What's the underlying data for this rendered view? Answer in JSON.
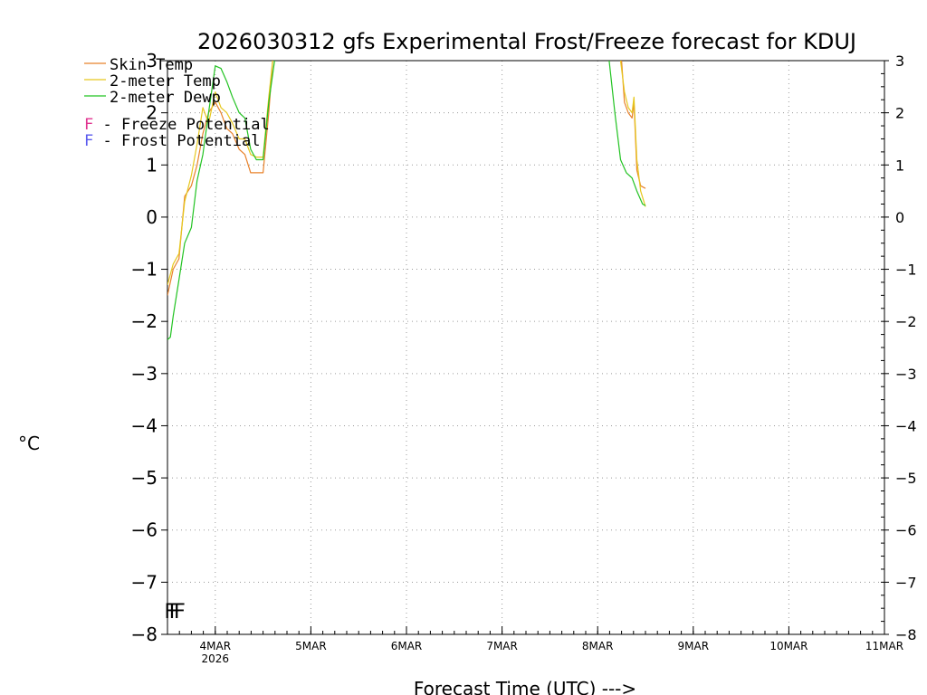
{
  "chart_data": {
    "type": "line",
    "title": "2026030312 gfs Experimental Frost/Freeze forecast for KDUJ",
    "xlabel": "Forecast Time (UTC) --->",
    "ylabel": "°C",
    "ylim": [
      -8,
      3
    ],
    "xlim": [
      3.5,
      11.0
    ],
    "yticks": [
      "-8",
      "-7",
      "-6",
      "-5",
      "-4",
      "-3",
      "-2",
      "-1",
      "0",
      "1",
      "2",
      "3"
    ],
    "xticks": [
      {
        "x": 4,
        "label": "4MAR",
        "sublabel": "2026"
      },
      {
        "x": 5,
        "label": "5MAR",
        "sublabel": ""
      },
      {
        "x": 6,
        "label": "6MAR",
        "sublabel": ""
      },
      {
        "x": 7,
        "label": "7MAR",
        "sublabel": ""
      },
      {
        "x": 8,
        "label": "8MAR",
        "sublabel": ""
      },
      {
        "x": 9,
        "label": "9MAR",
        "sublabel": ""
      },
      {
        "x": 10,
        "label": "10MAR",
        "sublabel": ""
      },
      {
        "x": 11,
        "label": "11MAR",
        "sublabel": ""
      }
    ],
    "grid": true,
    "legend": [
      {
        "name": "Skin Temp",
        "color": "#e8822a"
      },
      {
        "name": "2-meter Temp",
        "color": "#e6c81e"
      },
      {
        "name": "2-meter Dewp",
        "color": "#22c322"
      }
    ],
    "potential_legend": [
      {
        "letter": "F",
        "text": " - Freeze Potential",
        "color": "#e0338f"
      },
      {
        "letter": "F",
        "text": " - Frost Potential",
        "color": "#5a5aee"
      }
    ],
    "series": [
      {
        "name": "Skin Temp",
        "color": "#e8822a",
        "segments": [
          [
            [
              3.5,
              -1.5
            ],
            [
              3.56,
              -1.0
            ],
            [
              3.62,
              -0.8
            ],
            [
              3.68,
              0.4
            ],
            [
              3.75,
              0.6
            ],
            [
              3.81,
              1.0
            ],
            [
              3.87,
              1.6
            ],
            [
              3.93,
              2.0
            ],
            [
              4.0,
              2.2
            ],
            [
              4.06,
              2.0
            ],
            [
              4.12,
              1.7
            ],
            [
              4.18,
              1.6
            ],
            [
              4.25,
              1.3
            ],
            [
              4.31,
              1.2
            ],
            [
              4.37,
              0.85
            ],
            [
              4.43,
              0.85
            ],
            [
              4.5,
              0.85
            ],
            [
              4.56,
              2.0
            ],
            [
              4.6,
              3.0
            ]
          ],
          [
            [
              8.25,
              3.0
            ],
            [
              8.28,
              2.2
            ],
            [
              8.32,
              2.0
            ],
            [
              8.36,
              1.9
            ],
            [
              8.38,
              2.2
            ],
            [
              8.41,
              0.9
            ],
            [
              8.45,
              0.6
            ],
            [
              8.5,
              0.55
            ]
          ]
        ]
      },
      {
        "name": "2-meter Temp",
        "color": "#e6c81e",
        "segments": [
          [
            [
              3.5,
              -1.3
            ],
            [
              3.56,
              -0.9
            ],
            [
              3.62,
              -0.7
            ],
            [
              3.68,
              0.3
            ],
            [
              3.75,
              0.8
            ],
            [
              3.81,
              1.4
            ],
            [
              3.87,
              2.1
            ],
            [
              3.93,
              1.8
            ],
            [
              4.0,
              2.4
            ],
            [
              4.06,
              2.1
            ],
            [
              4.12,
              2.0
            ],
            [
              4.18,
              1.8
            ],
            [
              4.25,
              1.5
            ],
            [
              4.31,
              1.5
            ],
            [
              4.37,
              1.2
            ],
            [
              4.43,
              1.15
            ],
            [
              4.5,
              1.15
            ],
            [
              4.56,
              2.3
            ],
            [
              4.6,
              3.0
            ]
          ],
          [
            [
              8.24,
              3.0
            ],
            [
              8.28,
              2.4
            ],
            [
              8.32,
              2.1
            ],
            [
              8.36,
              2.0
            ],
            [
              8.38,
              2.3
            ],
            [
              8.41,
              1.1
            ],
            [
              8.45,
              0.5
            ],
            [
              8.5,
              0.2
            ]
          ]
        ]
      },
      {
        "name": "2-meter Dewp",
        "color": "#22c322",
        "segments": [
          [
            [
              3.5,
              -2.35
            ],
            [
              3.53,
              -2.3
            ],
            [
              3.56,
              -1.9
            ],
            [
              3.62,
              -1.2
            ],
            [
              3.68,
              -0.5
            ],
            [
              3.75,
              -0.2
            ],
            [
              3.81,
              0.7
            ],
            [
              3.87,
              1.2
            ],
            [
              3.93,
              2.0
            ],
            [
              4.0,
              2.9
            ],
            [
              4.06,
              2.85
            ],
            [
              4.12,
              2.6
            ],
            [
              4.18,
              2.3
            ],
            [
              4.25,
              2.0
            ],
            [
              4.31,
              1.9
            ],
            [
              4.37,
              1.3
            ],
            [
              4.43,
              1.1
            ],
            [
              4.5,
              1.1
            ],
            [
              4.56,
              2.2
            ],
            [
              4.62,
              3.0
            ]
          ],
          [
            [
              8.12,
              3.0
            ],
            [
              8.18,
              2.0
            ],
            [
              8.24,
              1.1
            ],
            [
              8.3,
              0.85
            ],
            [
              8.36,
              0.75
            ],
            [
              8.41,
              0.5
            ],
            [
              8.47,
              0.25
            ],
            [
              8.5,
              0.22
            ]
          ]
        ]
      }
    ],
    "potential_markers": {
      "letters": [
        {
          "x": 3.52,
          "letter": "F"
        },
        {
          "x": 3.57,
          "letter": "F"
        },
        {
          "x": 3.62,
          "letter": "F"
        }
      ],
      "y": -7.55,
      "color": "#e0338f"
    }
  }
}
